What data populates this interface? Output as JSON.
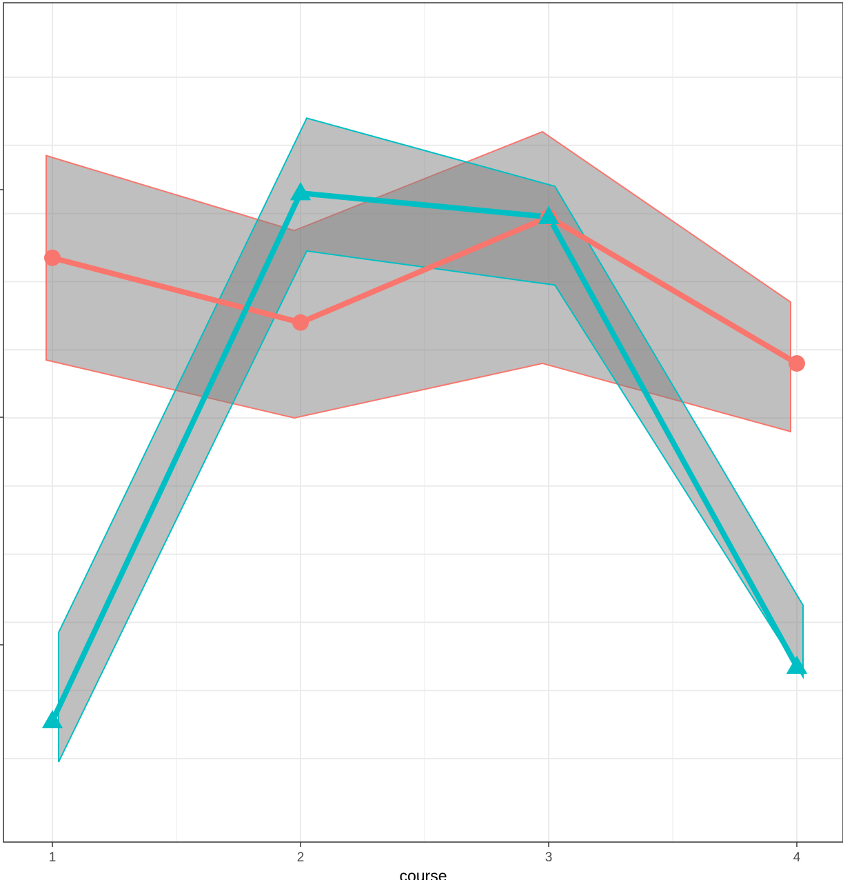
{
  "chart_data": {
    "type": "line",
    "xlabel": "course",
    "ylabel": "",
    "x": [
      1,
      2,
      3,
      4
    ],
    "xlim": [
      0.85,
      4.15
    ],
    "ylim": [
      0,
      1
    ],
    "grid": true,
    "series": [
      {
        "color": "#F8766D",
        "marker": "circle",
        "values": [
          0.735,
          0.64,
          0.795,
          0.58
        ],
        "ribbon_upper": [
          0.885,
          0.775,
          0.92,
          0.67
        ],
        "ribbon_lower": [
          0.585,
          0.5,
          0.58,
          0.48
        ],
        "ribbon_x": [
          0.975,
          1.975,
          2.975,
          3.975
        ]
      },
      {
        "color": "#00BFC4",
        "marker": "triangle",
        "values": [
          0.055,
          0.83,
          0.795,
          0.135
        ],
        "ribbon_upper": [
          0.185,
          0.94,
          0.84,
          0.225
        ],
        "ribbon_lower": [
          -0.005,
          0.745,
          0.695,
          0.12
        ],
        "ribbon_x": [
          1.025,
          2.025,
          3.025,
          4.025
        ]
      }
    ],
    "ribbon_fill": "#808080"
  }
}
